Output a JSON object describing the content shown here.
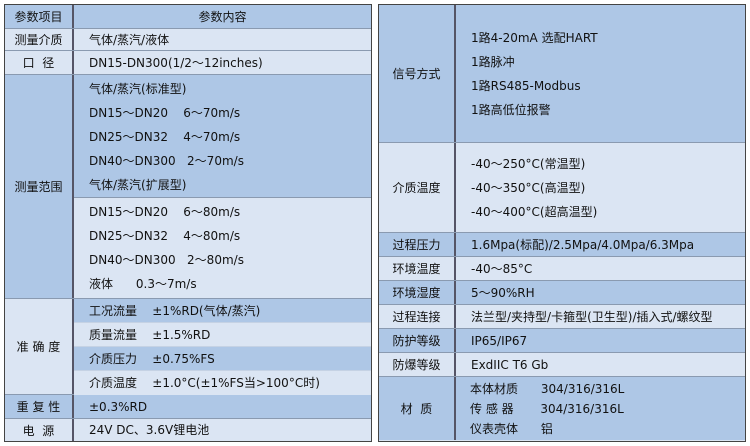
{
  "left": {
    "header": {
      "label": "参数项目",
      "value": "参数内容"
    },
    "medium": {
      "label": "测量介质",
      "value": "气体/蒸汽/液体"
    },
    "diameter": {
      "label": "口  径",
      "value": "DN15-DN300(1/2～12inches)"
    },
    "range": {
      "label": "测量范围",
      "standard": [
        "气体/蒸汽(标准型)",
        "DN15～DN20    6～70m/s",
        "DN25～DN32    4～70m/s",
        "DN40～DN300   2～70m/s",
        "气体/蒸汽(扩展型)"
      ],
      "extended": [
        "DN15～DN20    6～80m/s",
        "DN25～DN32    4～80m/s",
        "DN40～DN300   2～80m/s",
        "液体      0.3～7m/s"
      ]
    },
    "accuracy": {
      "label": "准 确 度",
      "rows": [
        "工况流量    ±1%RD(气体/蒸汽)",
        "质量流量    ±1.5%RD",
        "介质压力    ±0.75%FS",
        "介质温度    ±1.0°C(±1%FS当>100°C时)"
      ]
    },
    "repeat": {
      "label": "重 复 性",
      "value": "±0.3%RD"
    },
    "power": {
      "label": "电  源",
      "value": "24V DC、3.6V锂电池"
    }
  },
  "right": {
    "signal": {
      "label": "信号方式",
      "values": [
        "1路4-20mA 选配HART",
        "1路脉冲",
        "1路RS485-Modbus",
        "1路高低位报警"
      ]
    },
    "medium_temp": {
      "label": "介质温度",
      "values": [
        "-40～250°C(常温型)",
        "-40～350°C(高温型)",
        "-40～400°C(超高温型)"
      ]
    },
    "pressure": {
      "label": "过程压力",
      "value": "1.6Mpa(标配)/2.5Mpa/4.0Mpa/6.3Mpa"
    },
    "env_temp": {
      "label": "环境温度",
      "value": "-40～85°C"
    },
    "env_humid": {
      "label": "环境湿度",
      "value": "5～90%RH"
    },
    "connection": {
      "label": "过程连接",
      "value": "法兰型/夹持型/卡箍型(卫生型)/插入式/螺纹型"
    },
    "protection": {
      "label": "防护等级",
      "value": "IP65/IP67"
    },
    "explosion": {
      "label": "防爆等级",
      "value": "ExdIIC T6 Gb"
    },
    "material": {
      "label": "材  质",
      "values": [
        "本体材质      304/316/316L",
        "传 感 器       304/316/316L",
        "仪表壳体      铝"
      ]
    }
  },
  "colors": {
    "dark": "#aec7e6",
    "light": "#dbe5f3"
  }
}
